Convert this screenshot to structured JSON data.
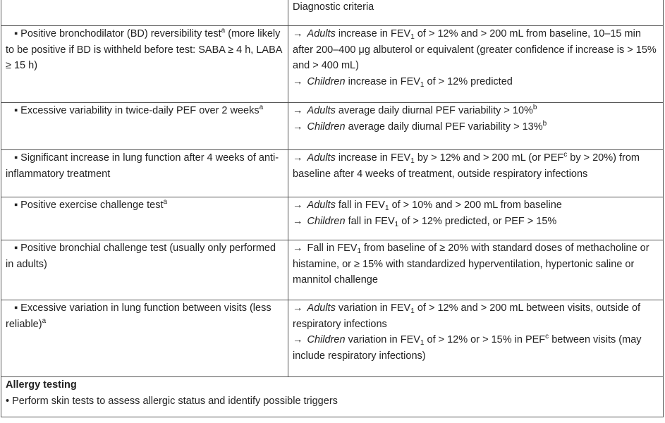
{
  "table": {
    "header": {
      "col1": "",
      "col2": "Diagnostic criteria"
    },
    "rows": [
      {
        "test": "Positive bronchodilator (BD) reversibility test",
        "test_sup": "a",
        "test_cont": "(more likely to be positive if BD is withheld before test: SABA ≥ 4 h, LABA ≥ 15 h)",
        "c_adults_label": "Adults",
        "c_adults_pre": "increase in FEV",
        "c_adults_sub": "1",
        "c_adults_post": "of > 12% and > 200 mL from baseline, 10–15 min after 200–400 μg albuterol or equivalent (greater confidence if increase is > 15% and > 400 mL)",
        "c_children_label": "Children",
        "c_children_pre": "increase in FEV",
        "c_children_sub": "1",
        "c_children_post": "of > 12% predicted"
      },
      {
        "test": "Excessive variability in twice-daily PEF over 2 weeks",
        "test_sup": "a",
        "c_adults_label": "Adults",
        "c_adults_text": "average daily diurnal PEF variability > 10%",
        "c_adults_sup": "b",
        "c_children_label": "Children",
        "c_children_text": "average daily diurnal PEF variability > 13%",
        "c_children_sup": "b"
      },
      {
        "test": "Significant increase in lung function after 4 weeks of anti-inflammatory treatment",
        "c_adults_label": "Adults",
        "c_pre": "increase in FEV",
        "c_sub": "1",
        "c_mid": "by > 12% and > 200 mL (or PEF",
        "c_sup": "c",
        "c_post": "by > 20%) from baseline after 4 weeks of treatment, outside respiratory infections"
      },
      {
        "test": "Positive exercise challenge test",
        "test_sup": "a",
        "c_adults_label": "Adults",
        "c_adults_pre": "fall in FEV",
        "c_adults_sub": "1",
        "c_adults_post": "of > 10% and > 200 mL from baseline",
        "c_children_label": "Children",
        "c_children_pre": "fall in FEV",
        "c_children_sub": "1",
        "c_children_post": "of > 12% predicted, or PEF > 15%"
      },
      {
        "test": "Positive bronchial challenge test (usually only performed in adults)",
        "c_pre": "Fall in FEV",
        "c_sub": "1",
        "c_post": "from baseline of ≥ 20% with standard doses of methacholine or histamine, or ≥ 15% with standardized hyperventilation, hypertonic saline or mannitol challenge"
      },
      {
        "test": "Excessive variation in lung function between visits (less reliable)",
        "test_sup": "a",
        "c_adults_label": "Adults",
        "c_adults_pre": "variation in FEV",
        "c_adults_sub": "1",
        "c_adults_post": "of > 12% and > 200 mL between visits, outside of respiratory infections",
        "c_children_label": "Children",
        "c_children_pre": "variation in FEV",
        "c_children_sub": "1",
        "c_children_mid": "of > 12% or > 15% in PEF",
        "c_children_sup": "c",
        "c_children_post": "between visits (may include respiratory infections)"
      }
    ],
    "allergy": {
      "title": "Allergy testing",
      "text": "Perform skin tests to assess allergic status and identify possible triggers"
    }
  },
  "symbols": {
    "bullet": "▪",
    "arrow": "→",
    "dot": "•"
  }
}
